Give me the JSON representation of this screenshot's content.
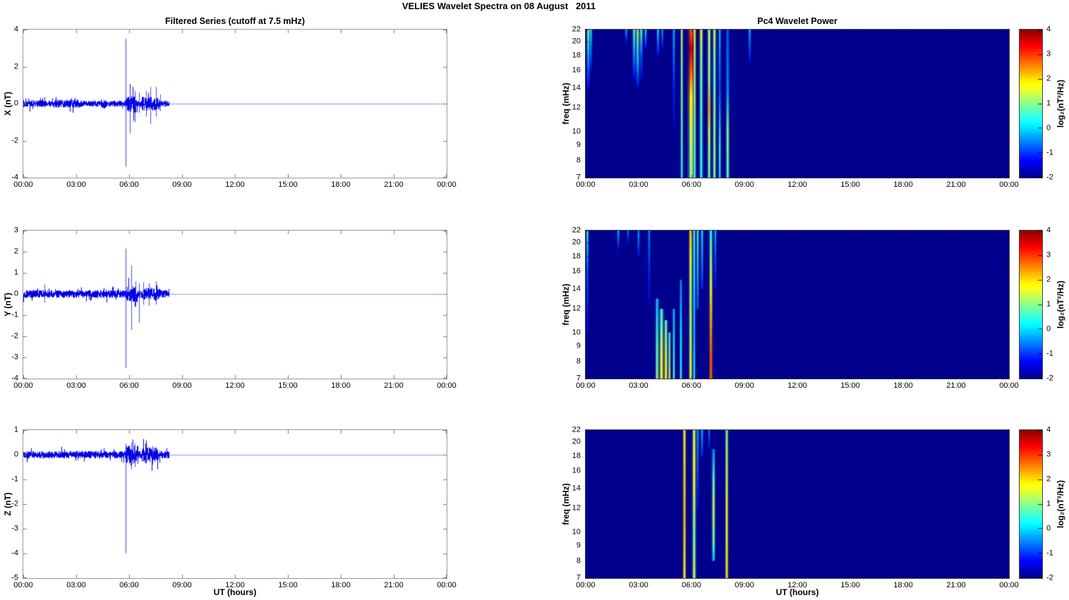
{
  "figure_title": "VELIES Wavelet Spectra on 08 August   2011",
  "panels": {
    "left_title": "Filtered Series (cutoff at 7.5 mHz)",
    "right_title": "Pc4 Wavelet Power",
    "xlabel": "UT (hours)",
    "xtick_hours": [
      0,
      3,
      6,
      9,
      12,
      15,
      18,
      21,
      24
    ],
    "xtick_labels": [
      "00:00",
      "03:00",
      "06:00",
      "09:00",
      "12:00",
      "15:00",
      "18:00",
      "21:00",
      "00:00"
    ]
  },
  "colorbar": {
    "label": "log₂(nT²/Hz)",
    "ticks": [
      4,
      3,
      2,
      1,
      0,
      -1,
      -2
    ],
    "range": [
      -2,
      4
    ],
    "colormap": "jet"
  },
  "colors": {
    "line": "#0000e6",
    "heatmap_background": "#00008c",
    "axis_box": "#999999"
  },
  "chart_data": [
    {
      "type": "line",
      "name": "filtered-series-x",
      "ylabel": "X (nT)",
      "ylim": [
        -4,
        4
      ],
      "yticks": [
        4,
        2,
        0,
        -2,
        -4
      ],
      "x_range_hours": [
        0,
        24
      ],
      "signal": {
        "seed": 7,
        "noise_amp_nT": 0.13,
        "data_end_hour": 8.25,
        "bursts": [
          [
            0.0,
            1.2,
            0.03
          ],
          [
            1.7,
            3.3,
            0.05
          ],
          [
            5.8,
            6.45,
            0.28
          ],
          [
            6.7,
            7.75,
            0.17
          ],
          [
            4.4,
            4.7,
            0.08
          ]
        ],
        "spikes": [
          [
            5.78,
            3.5,
            -3.4
          ],
          [
            6.02,
            0.9,
            -1.6
          ],
          [
            6.3,
            0.7,
            -1.0
          ],
          [
            6.55,
            0.6,
            -0.5
          ],
          [
            6.95,
            0.7,
            -0.7
          ],
          [
            7.2,
            0.9,
            -1.1
          ],
          [
            7.5,
            0.9,
            -0.7
          ],
          [
            7.75,
            0.5,
            -0.4
          ]
        ]
      }
    },
    {
      "type": "line",
      "name": "filtered-series-y",
      "ylabel": "Y (nT)",
      "ylim": [
        -4,
        3
      ],
      "yticks": [
        3,
        2,
        1,
        0,
        -1,
        -2,
        -3,
        -4
      ],
      "x_range_hours": [
        0,
        24
      ],
      "signal": {
        "seed": 13,
        "noise_amp_nT": 0.15,
        "data_end_hour": 8.25,
        "bursts": [
          [
            5.8,
            6.4,
            0.15
          ],
          [
            6.7,
            7.7,
            0.08
          ]
        ],
        "spikes": [
          [
            5.78,
            2.15,
            -3.5
          ],
          [
            6.12,
            1.35,
            -1.7
          ],
          [
            6.35,
            0.6,
            -0.6
          ],
          [
            6.55,
            0.5,
            -1.35
          ],
          [
            6.8,
            0.55,
            -0.5
          ],
          [
            7.1,
            0.5,
            -0.55
          ],
          [
            7.5,
            0.6,
            -0.5
          ],
          [
            1.2,
            0.45,
            -0.4
          ]
        ]
      }
    },
    {
      "type": "line",
      "name": "filtered-series-z",
      "ylabel": "Z (nT)",
      "ylim": [
        -5,
        1
      ],
      "yticks": [
        1,
        0,
        -1,
        -2,
        -3,
        -4,
        -5
      ],
      "x_range_hours": [
        0,
        24
      ],
      "signal": {
        "seed": 21,
        "noise_amp_nT": 0.12,
        "data_end_hour": 8.25,
        "bursts": [
          [
            5.8,
            6.5,
            0.18
          ],
          [
            6.7,
            7.6,
            0.12
          ]
        ],
        "spikes": [
          [
            5.78,
            0.45,
            -4.0
          ],
          [
            6.1,
            0.5,
            -0.6
          ],
          [
            6.3,
            0.45,
            -0.5
          ],
          [
            7.3,
            0.35,
            -0.4
          ]
        ]
      }
    },
    {
      "type": "heatmap",
      "name": "pc4-wavelet-power-x",
      "ylabel": "freq (mHz)",
      "yscale": "log",
      "ylim_mHz": [
        7,
        22
      ],
      "yticks": [
        22,
        20,
        18,
        16,
        14,
        12,
        10,
        9,
        8,
        7
      ],
      "x_range_hours": [
        0,
        24
      ],
      "power_log2_range": [
        -2,
        4
      ],
      "background_power_log2": -2,
      "streaks": [
        {
          "t": 0.15,
          "w": 2.0,
          "stops": [
            [
              22,
              1.0
            ],
            [
              18,
              -0.2
            ],
            [
              14,
              -1.4
            ]
          ]
        },
        {
          "t": 0.3,
          "w": 1.5,
          "stops": [
            [
              22,
              0.1
            ],
            [
              16,
              -1.4
            ]
          ]
        },
        {
          "t": 2.3,
          "w": 1.5,
          "stops": [
            [
              22,
              -0.2
            ],
            [
              20,
              -1.4
            ]
          ]
        },
        {
          "t": 2.75,
          "w": 2.0,
          "stops": [
            [
              22,
              0.7
            ],
            [
              18,
              -0.5
            ],
            [
              15,
              -1.5
            ]
          ]
        },
        {
          "t": 2.95,
          "w": 2.0,
          "stops": [
            [
              22,
              1.0
            ],
            [
              17,
              -0.2
            ],
            [
              14,
              -1.5
            ]
          ]
        },
        {
          "t": 3.15,
          "w": 2.0,
          "stops": [
            [
              22,
              0.7
            ],
            [
              18,
              -0.8
            ],
            [
              15,
              -1.7
            ]
          ]
        },
        {
          "t": 3.4,
          "w": 1.5,
          "stops": [
            [
              22,
              0.1
            ],
            [
              19,
              -1.4
            ]
          ]
        },
        {
          "t": 4.1,
          "w": 1.5,
          "stops": [
            [
              22,
              0.1
            ],
            [
              18,
              -1.3
            ]
          ]
        },
        {
          "t": 4.35,
          "w": 1.2,
          "stops": [
            [
              22,
              -0.2
            ],
            [
              19,
              -1.5
            ]
          ]
        },
        {
          "t": 5.0,
          "w": 1.5,
          "stops": [
            [
              22,
              -0.2
            ],
            [
              14,
              -1.1
            ],
            [
              10,
              -1.7
            ]
          ]
        },
        {
          "t": 5.45,
          "w": 1.5,
          "stops": [
            [
              22,
              1.3
            ],
            [
              16,
              1.0
            ],
            [
              10,
              0.7
            ],
            [
              7,
              0.4
            ]
          ]
        },
        {
          "t": 5.98,
          "w": 3.5,
          "stops": [
            [
              22,
              2.8
            ],
            [
              19,
              3.7
            ],
            [
              16,
              2.8
            ],
            [
              13,
              1.9
            ],
            [
              10,
              1.3
            ],
            [
              7,
              1.0
            ]
          ]
        },
        {
          "t": 6.18,
          "w": 1.5,
          "stops": [
            [
              22,
              1.6
            ],
            [
              17,
              1.3
            ],
            [
              12,
              1.0
            ],
            [
              7,
              0.7
            ]
          ]
        },
        {
          "t": 6.55,
          "w": 2.0,
          "stops": [
            [
              22,
              1.6
            ],
            [
              18,
              1.0
            ],
            [
              13,
              0.7
            ],
            [
              7,
              0.4
            ]
          ]
        },
        {
          "t": 7.0,
          "w": 2.0,
          "stops": [
            [
              22,
              1.3
            ],
            [
              15,
              1.0
            ],
            [
              12,
              2.3
            ],
            [
              10,
              1.3
            ],
            [
              7,
              0.7
            ]
          ]
        },
        {
          "t": 7.3,
          "w": 2.0,
          "stops": [
            [
              22,
              1.3
            ],
            [
              16,
              0.7
            ],
            [
              10,
              1.0
            ],
            [
              7,
              1.0
            ]
          ]
        },
        {
          "t": 7.6,
          "w": 1.5,
          "stops": [
            [
              22,
              -0.2
            ],
            [
              14,
              -0.8
            ],
            [
              9,
              0.4
            ],
            [
              7,
              0.1
            ]
          ]
        },
        {
          "t": 8.05,
          "w": 2.0,
          "stops": [
            [
              22,
              -0.8
            ],
            [
              14,
              -0.5
            ],
            [
              10,
              1.0
            ],
            [
              7,
              0.7
            ]
          ]
        },
        {
          "t": 9.3,
          "w": 1.5,
          "stops": [
            [
              22,
              -0.2
            ],
            [
              17,
              -1.4
            ]
          ]
        }
      ]
    },
    {
      "type": "heatmap",
      "name": "pc4-wavelet-power-y",
      "ylabel": "freq (mHz)",
      "yscale": "log",
      "ylim_mHz": [
        7,
        22
      ],
      "yticks": [
        22,
        20,
        18,
        16,
        14,
        12,
        10,
        9,
        8,
        7
      ],
      "x_range_hours": [
        0,
        24
      ],
      "power_log2_range": [
        -2,
        4
      ],
      "background_power_log2": -2,
      "streaks": [
        {
          "t": 0.1,
          "w": 1.5,
          "stops": [
            [
              22,
              0.4
            ],
            [
              16,
              -0.8
            ],
            [
              10,
              -1.5
            ]
          ]
        },
        {
          "t": 1.85,
          "w": 1.5,
          "stops": [
            [
              22,
              -0.2
            ],
            [
              19,
              -1.4
            ]
          ]
        },
        {
          "t": 2.4,
          "w": 1.2,
          "stops": [
            [
              22,
              -0.5
            ],
            [
              20,
              -1.5
            ]
          ]
        },
        {
          "t": 3.0,
          "w": 1.5,
          "stops": [
            [
              22,
              -0.2
            ],
            [
              18,
              -1.4
            ]
          ]
        },
        {
          "t": 3.6,
          "w": 1.5,
          "stops": [
            [
              22,
              -0.5
            ],
            [
              16,
              -1.1
            ],
            [
              12,
              -1.7
            ]
          ]
        },
        {
          "t": 4.05,
          "w": 2.0,
          "stops": [
            [
              13,
              -0.2
            ],
            [
              9,
              0.7
            ],
            [
              7,
              1.0
            ]
          ]
        },
        {
          "t": 4.3,
          "w": 2.5,
          "stops": [
            [
              12,
              0.4
            ],
            [
              9,
              1.3
            ],
            [
              7,
              1.6
            ]
          ]
        },
        {
          "t": 4.55,
          "w": 2.0,
          "stops": [
            [
              11,
              0.7
            ],
            [
              8,
              1.6
            ],
            [
              7,
              1.7
            ]
          ]
        },
        {
          "t": 4.75,
          "w": 1.5,
          "stops": [
            [
              10,
              0.4
            ],
            [
              7,
              1.3
            ]
          ]
        },
        {
          "t": 5.0,
          "w": 1.5,
          "stops": [
            [
              12,
              -0.2
            ],
            [
              7,
              0.7
            ]
          ]
        },
        {
          "t": 5.4,
          "w": 1.5,
          "stops": [
            [
              15,
              -0.5
            ],
            [
              10,
              0.1
            ],
            [
              7,
              0.4
            ]
          ]
        },
        {
          "t": 5.95,
          "w": 2.0,
          "stops": [
            [
              22,
              2.1
            ],
            [
              18,
              1.6
            ],
            [
              14,
              1.3
            ],
            [
              10,
              1.3
            ],
            [
              7,
              1.6
            ]
          ]
        },
        {
          "t": 6.15,
          "w": 1.5,
          "stops": [
            [
              22,
              0.7
            ],
            [
              15,
              0.1
            ],
            [
              10,
              -0.2
            ],
            [
              7,
              0.1
            ]
          ]
        },
        {
          "t": 6.35,
          "w": 1.5,
          "stops": [
            [
              22,
              0.4
            ],
            [
              16,
              -0.2
            ],
            [
              12,
              -0.8
            ]
          ]
        },
        {
          "t": 6.6,
          "w": 1.5,
          "stops": [
            [
              22,
              0.1
            ],
            [
              17,
              -0.5
            ],
            [
              14,
              -1.1
            ]
          ]
        },
        {
          "t": 7.1,
          "w": 2.0,
          "stops": [
            [
              22,
              0.4
            ],
            [
              18,
              1.0
            ],
            [
              14,
              1.6
            ],
            [
              11,
              2.3
            ],
            [
              8,
              2.8
            ],
            [
              7,
              2.7
            ]
          ]
        },
        {
          "t": 7.35,
          "w": 1.5,
          "stops": [
            [
              22,
              -0.2
            ],
            [
              18,
              -0.8
            ],
            [
              14,
              -1.4
            ]
          ]
        }
      ]
    },
    {
      "type": "heatmap",
      "name": "pc4-wavelet-power-z",
      "ylabel": "freq (mHz)",
      "yscale": "log",
      "ylim_mHz": [
        7,
        22
      ],
      "yticks": [
        22,
        20,
        18,
        16,
        14,
        12,
        10,
        9,
        8,
        7
      ],
      "x_range_hours": [
        0,
        24
      ],
      "power_log2_range": [
        -2,
        4
      ],
      "background_power_log2": -2,
      "streaks": [
        {
          "t": 5.6,
          "w": 1.8,
          "stops": [
            [
              22,
              1.7
            ],
            [
              16,
              2.0
            ],
            [
              11,
              2.1
            ],
            [
              7,
              1.7
            ]
          ]
        },
        {
          "t": 6.15,
          "w": 2.2,
          "stops": [
            [
              22,
              1.3
            ],
            [
              17,
              1.7
            ],
            [
              14,
              1.5
            ],
            [
              10,
              0.9
            ],
            [
              7,
              1.3
            ]
          ]
        },
        {
          "t": 6.35,
          "w": 1.2,
          "stops": [
            [
              22,
              -0.2
            ],
            [
              16,
              -0.8
            ],
            [
              12,
              -1.4
            ]
          ]
        },
        {
          "t": 6.6,
          "w": 1.5,
          "stops": [
            [
              22,
              -0.2
            ],
            [
              18,
              -1.1
            ]
          ]
        },
        {
          "t": 7.0,
          "w": 1.2,
          "stops": [
            [
              22,
              -0.5
            ],
            [
              19,
              -1.4
            ]
          ]
        },
        {
          "t": 7.25,
          "w": 2.0,
          "stops": [
            [
              19,
              -0.5
            ],
            [
              15,
              0.7
            ],
            [
              12,
              1.3
            ],
            [
              9,
              0.7
            ],
            [
              8,
              -0.2
            ]
          ]
        },
        {
          "t": 8.0,
          "w": 1.8,
          "stops": [
            [
              22,
              1.0
            ],
            [
              17,
              1.3
            ],
            [
              12,
              1.6
            ],
            [
              7,
              1.9
            ]
          ]
        }
      ]
    }
  ]
}
